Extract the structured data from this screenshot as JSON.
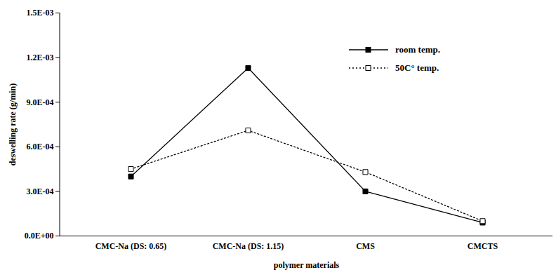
{
  "chart_data": {
    "type": "line",
    "x_label": "polymer materials",
    "y_label": "deswelling rate (g/min)",
    "categories": [
      "CMC-Na (DS: 0.65)",
      "CMC-Na (DS: 1.15)",
      "CMS",
      "CMCTS"
    ],
    "series": [
      {
        "name": "room temp.",
        "color": "#000000",
        "marker": "square",
        "line_style": "solid",
        "values": [
          0.0004,
          0.00113,
          0.0003,
          9e-05
        ]
      },
      {
        "name": "50C° temp.",
        "color": "#000000",
        "marker": "square-open",
        "line_style": "dotted",
        "values": [
          0.00045,
          0.00071,
          0.00043,
          0.0001
        ]
      }
    ],
    "ylim": [
      0,
      0.0015
    ],
    "yticks": [
      {
        "value": 0,
        "label": "0.0E+00"
      },
      {
        "value": 0.0003,
        "label": "3.0E-04"
      },
      {
        "value": 0.0006,
        "label": "6.0E-04"
      },
      {
        "value": 0.0009,
        "label": "9.0E-04"
      },
      {
        "value": 0.0012,
        "label": "1.2E-03"
      },
      {
        "value": 0.0015,
        "label": "1.5E-03"
      }
    ],
    "grid": false,
    "legend": "upper right"
  }
}
